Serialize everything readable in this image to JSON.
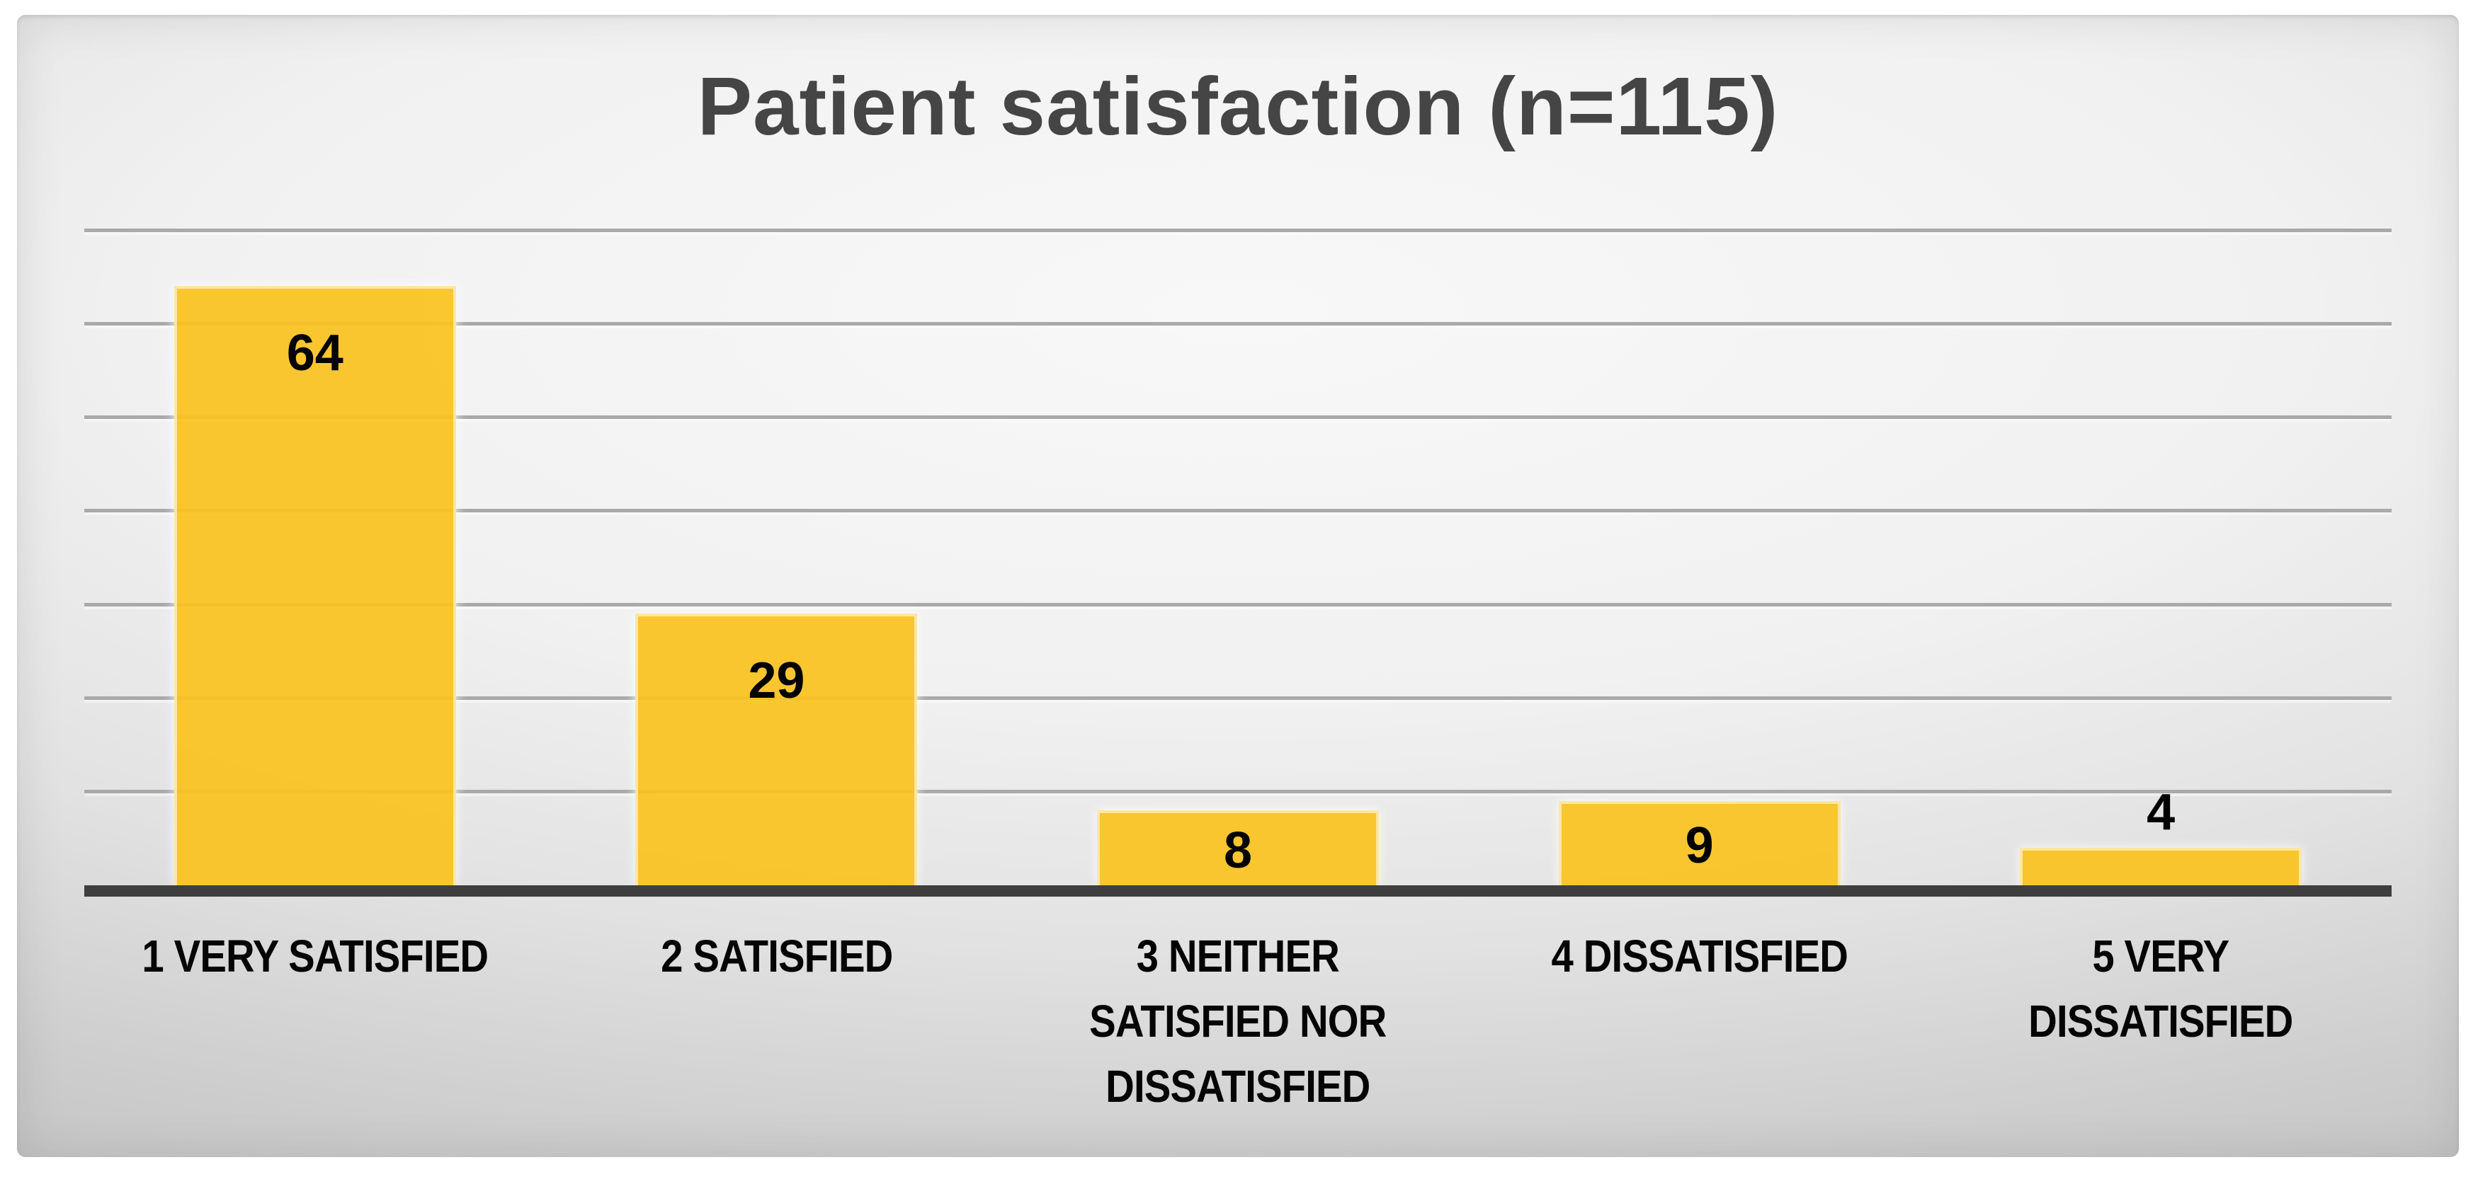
{
  "chart_data": {
    "type": "bar",
    "title": "Patient satisfaction (n=115)",
    "categories": [
      "1 VERY SATISFIED",
      "2 SATISFIED",
      "3 NEITHER\nSATISFIED NOR\nDISSATISFIED",
      "4 DISSATISFIED",
      "5 VERY DISSATISFIED"
    ],
    "values": [
      64,
      29,
      8,
      9,
      4
    ],
    "data_labels": [
      64,
      29,
      8,
      9,
      4
    ],
    "data_label_position": "inside_end (above bar when bar too short)",
    "xlabel": "",
    "ylabel": "",
    "ylim": [
      0,
      70
    ],
    "grid_step": 10,
    "grid_on": true,
    "y_tick_labels_visible": false,
    "legend": "none",
    "colors": {
      "bar_fill": "#FAC320",
      "bar_edge": "#FFFCF0",
      "gridline": "#A9A9A9",
      "axis_line": "#3E3E3E",
      "title_text": "#454545",
      "value_label_text": "#000000",
      "category_label_text": "#050505",
      "slide_background_center": "#F8F8F8",
      "slide_background_edge": "#C2C2C2",
      "page_background": "#FFFFFF"
    }
  }
}
